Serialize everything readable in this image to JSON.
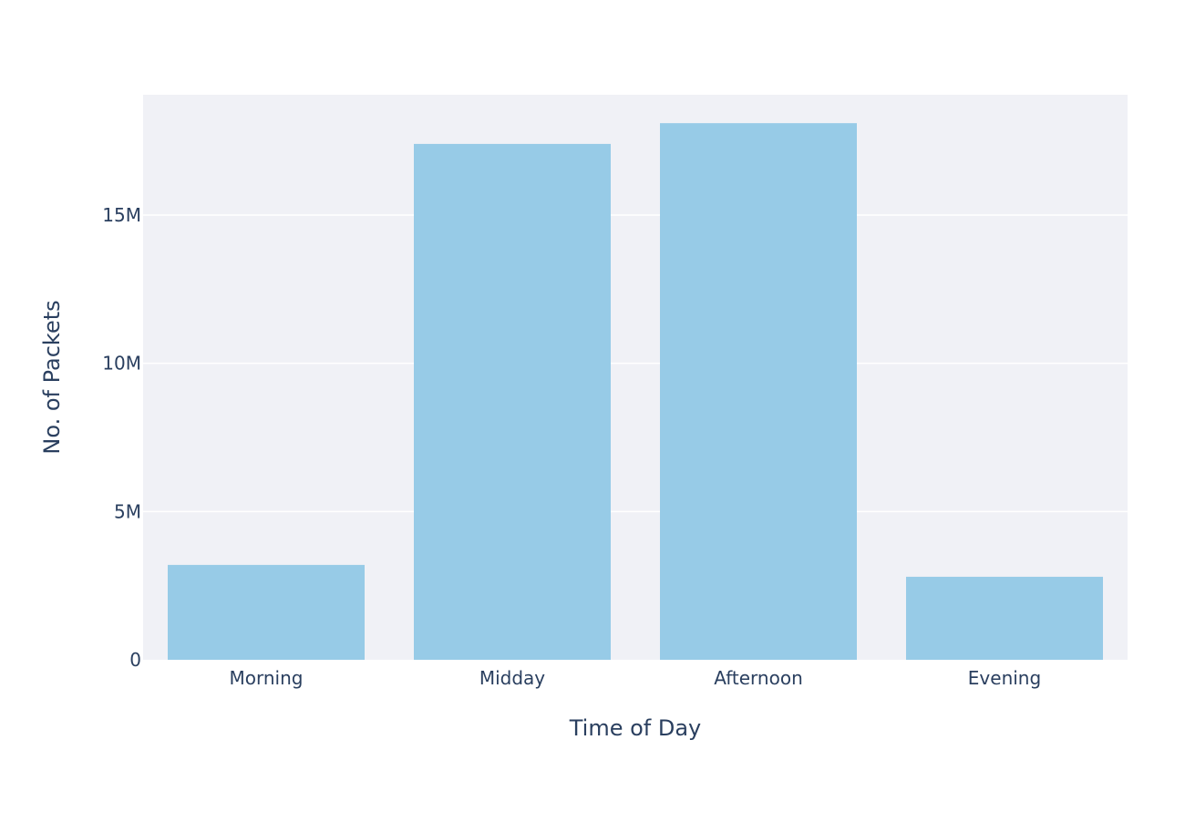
{
  "chart_data": {
    "type": "bar",
    "title": "",
    "xlabel": "Time of Day",
    "ylabel": "No. of Packets",
    "categories": [
      "Morning",
      "Midday",
      "Afternoon",
      "Evening"
    ],
    "values": [
      3200000,
      17400000,
      18100000,
      2800000
    ],
    "ylim": [
      0,
      19000000
    ],
    "yticks": [
      0,
      5000000,
      10000000,
      15000000
    ],
    "ytick_labels": [
      "0",
      "5M",
      "10M",
      "15M"
    ],
    "grid": true,
    "legend": "none",
    "colors": {
      "bar": "#97cbe7",
      "plot_background": "#f0f1f6",
      "grid": "#ffffff",
      "text": "#2a3f5f"
    }
  }
}
